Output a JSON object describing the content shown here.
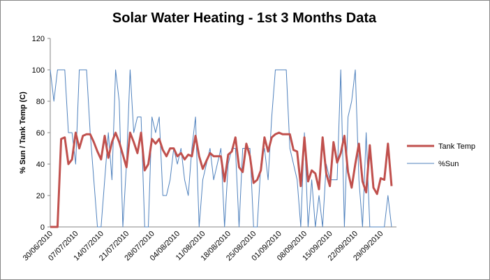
{
  "chart_data": {
    "type": "line",
    "title": "Solar Water Heating - 1st 3 Months Data",
    "y_label": "% Sun / Tank Temp (C)",
    "categories": [
      "30/06/2010",
      null,
      null,
      null,
      null,
      null,
      null,
      "07/07/2010",
      null,
      null,
      null,
      null,
      null,
      null,
      "14/07/2010",
      null,
      null,
      null,
      null,
      null,
      null,
      "21/07/2010",
      null,
      null,
      null,
      null,
      null,
      null,
      "28/07/2010",
      null,
      null,
      null,
      null,
      null,
      null,
      "04/08/2010",
      null,
      null,
      null,
      null,
      null,
      null,
      "11/08/2010",
      null,
      null,
      null,
      null,
      null,
      null,
      "18/08/2010",
      null,
      null,
      null,
      null,
      null,
      null,
      "25/08/2010",
      null,
      null,
      null,
      null,
      null,
      null,
      "01/09/2010",
      null,
      null,
      null,
      null,
      null,
      null,
      "08/09/2010",
      null,
      null,
      null,
      null,
      null,
      null,
      "15/09/2010",
      null,
      null,
      null,
      null,
      null,
      null,
      "22/09/2010",
      null,
      null,
      null,
      null,
      null,
      null,
      "29/09/2010",
      null,
      null,
      null
    ],
    "series": [
      {
        "name": "Tank Temp",
        "color": "#c0504d",
        "width": 3,
        "values": [
          0,
          0,
          0,
          56,
          57,
          40,
          43,
          60,
          50,
          58,
          59,
          59,
          54,
          48,
          43,
          58,
          44,
          54,
          60,
          54,
          46,
          38,
          60,
          54,
          47,
          60,
          36,
          40,
          56,
          53,
          56,
          49,
          45,
          50,
          50,
          45,
          47,
          43,
          46,
          45,
          58,
          45,
          37,
          42,
          47,
          45,
          45,
          45,
          29,
          46,
          48,
          57,
          38,
          35,
          53,
          45,
          28,
          30,
          36,
          57,
          48,
          57,
          59,
          60,
          59,
          59,
          59,
          49,
          48,
          26,
          57,
          29,
          36,
          34,
          24,
          57,
          34,
          26,
          54,
          41,
          47,
          58,
          35,
          25,
          40,
          53,
          29,
          22,
          52,
          25,
          21,
          31,
          30,
          53,
          26
        ]
      },
      {
        "name": "%Sun",
        "color": "#4f81bd",
        "width": 1,
        "values": [
          100,
          80,
          100,
          100,
          100,
          60,
          60,
          40,
          100,
          100,
          100,
          60,
          30,
          0,
          0,
          30,
          60,
          30,
          100,
          80,
          0,
          40,
          100,
          60,
          70,
          70,
          0,
          0,
          70,
          60,
          70,
          20,
          20,
          30,
          50,
          40,
          50,
          30,
          20,
          50,
          70,
          0,
          30,
          40,
          50,
          30,
          40,
          50,
          0,
          40,
          50,
          50,
          0,
          50,
          50,
          50,
          0,
          0,
          40,
          50,
          30,
          70,
          100,
          100,
          100,
          100,
          50,
          40,
          30,
          0,
          60,
          0,
          30,
          0,
          20,
          0,
          40,
          30,
          30,
          30,
          100,
          0,
          70,
          80,
          100,
          30,
          0,
          60,
          0,
          0,
          0,
          0,
          0,
          20,
          0
        ]
      }
    ],
    "ylim": [
      0,
      120
    ],
    "yticks": [
      0,
      20,
      40,
      60,
      80,
      100,
      120
    ],
    "legend": "right"
  }
}
